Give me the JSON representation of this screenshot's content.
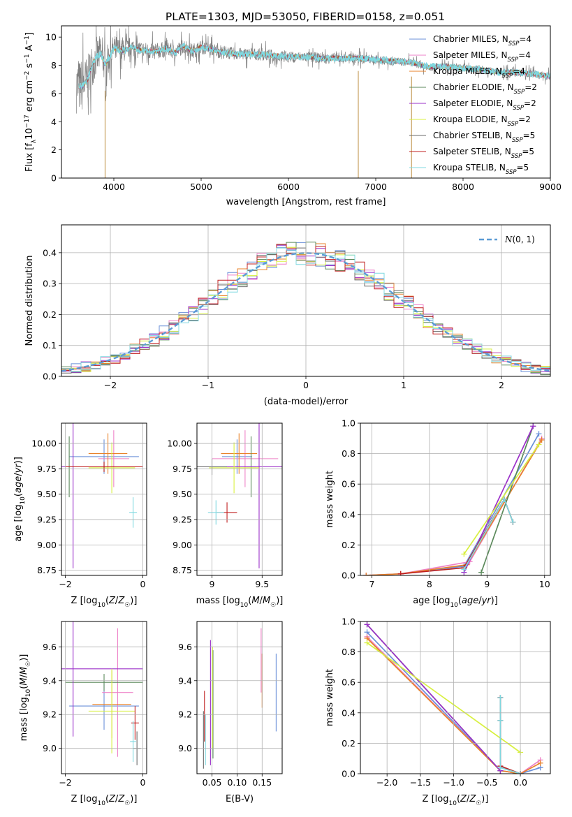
{
  "figure": {
    "title": "PLATE=1303, MJD=53050, FIBERID=0158, z=0.051"
  },
  "model_colors": {
    "Chabrier MILES": "#6a8fd8",
    "Salpeter MILES": "#ee82c8",
    "Kroupa MILES": "#e8822a",
    "Chabrier ELODIE": "#5b8a5b",
    "Salpeter ELODIE": "#9b30c9",
    "Kroupa ELODIE": "#d8f040",
    "Chabrier STELIB": "#6a6a6a",
    "Salpeter STELIB": "#c02020",
    "Kroupa STELIB": "#7fd8e0"
  },
  "chart_data": [
    {
      "id": "spectrum",
      "type": "line",
      "title": "PLATE=1303, MJD=53050, FIBERID=0158, z=0.051",
      "xlabel": "wavelength [Angstrom, rest frame]",
      "ylabel": "Flux [f_λ 10^-17 erg cm^-2 s^-1 A^-1]",
      "xlim": [
        3400,
        9000
      ],
      "ylim": [
        0,
        10.8
      ],
      "xticks": [
        4000,
        5000,
        6000,
        7000,
        8000,
        9000
      ],
      "yticks": [
        0,
        2,
        4,
        6,
        8,
        10
      ],
      "grid": false,
      "legend_position": "top-right",
      "legend": [
        {
          "model": "Chabrier MILES",
          "label": "Chabrier MILES, N",
          "sub": "SSP",
          "suffix": "=4"
        },
        {
          "model": "Salpeter MILES",
          "label": "Salpeter MILES, N",
          "sub": "SSP",
          "suffix": "=4"
        },
        {
          "model": "Kroupa MILES",
          "label": "Kroupa MILES, N",
          "sub": "SSP",
          "suffix": "=4"
        },
        {
          "model": "Chabrier ELODIE",
          "label": "Chabrier ELODIE, N",
          "sub": "SSP",
          "suffix": "=2"
        },
        {
          "model": "Salpeter ELODIE",
          "label": "Salpeter ELODIE, N",
          "sub": "SSP",
          "suffix": "=2"
        },
        {
          "model": "Kroupa ELODIE",
          "label": "Kroupa ELODIE, N",
          "sub": "SSP",
          "suffix": "=2"
        },
        {
          "model": "Chabrier STELIB",
          "label": "Chabrier STELIB, N",
          "sub": "SSP",
          "suffix": "=5"
        },
        {
          "model": "Salpeter STELIB",
          "label": "Salpeter STELIB, N",
          "sub": "SSP",
          "suffix": "=5"
        },
        {
          "model": "Kroupa STELIB",
          "label": "Kroupa STELIB, N",
          "sub": "SSP",
          "suffix": "=5"
        }
      ],
      "data_spectrum": {
        "color": "#808080",
        "x": [
          3600,
          3650,
          3700,
          3750,
          3800,
          3850,
          3900,
          3950,
          4000,
          4100,
          4200,
          4300,
          4400,
          4500,
          4600,
          4700,
          4800,
          4900,
          5000,
          5200,
          5400,
          5600,
          5800,
          6000,
          6200,
          6400,
          6600,
          6800,
          7000,
          7200,
          7400,
          7600,
          7800,
          8000,
          8200,
          8400,
          8600,
          8800,
          9000
        ],
        "y": [
          6.5,
          6.6,
          7.0,
          8.0,
          8.6,
          8.8,
          8.0,
          8.6,
          9.2,
          9.0,
          9.3,
          9.1,
          9.0,
          9.0,
          9.2,
          8.9,
          9.4,
          9.0,
          9.3,
          9.0,
          8.8,
          8.8,
          8.7,
          8.6,
          8.6,
          8.5,
          8.5,
          8.5,
          8.4,
          8.3,
          8.2,
          7.9,
          7.9,
          7.8,
          7.7,
          7.5,
          7.5,
          7.4,
          7.2
        ],
        "noise_amplitude": [
          3.5,
          3.5,
          3.0,
          2.8,
          2.6,
          2.4,
          2.2,
          2.0,
          1.8,
          1.5,
          1.3,
          1.2,
          1.1,
          1.1,
          1.0,
          1.0,
          1.0,
          1.0,
          0.9,
          0.9,
          0.8,
          0.8,
          0.8,
          0.7,
          0.7,
          0.7,
          0.7,
          0.6,
          0.6,
          0.6,
          0.5,
          0.5,
          0.5,
          0.5,
          0.5,
          0.5,
          0.5,
          0.5,
          0.5
        ]
      },
      "model_spectrum": {
        "x": [
          3600,
          3650,
          3700,
          3750,
          3800,
          3850,
          3900,
          3950,
          4000,
          4100,
          4200,
          4300,
          4400,
          4500,
          4600,
          4700,
          4800,
          4900,
          5000,
          5200,
          5400,
          5600,
          5800,
          6000,
          6200,
          6400,
          6600,
          6800,
          7000,
          7200,
          7400,
          7600,
          7800,
          8000,
          8200,
          8400,
          8600,
          8800,
          9000
        ],
        "y": [
          6.5,
          6.6,
          7.0,
          8.0,
          8.6,
          8.8,
          8.0,
          8.6,
          9.2,
          9.0,
          9.3,
          9.1,
          9.0,
          9.0,
          9.2,
          8.9,
          9.4,
          9.0,
          9.3,
          9.0,
          8.8,
          8.8,
          8.7,
          8.6,
          8.6,
          8.5,
          8.5,
          8.5,
          8.4,
          8.3,
          8.2,
          7.9,
          7.9,
          7.8,
          7.7,
          7.5,
          7.5,
          7.4,
          7.2
        ],
        "jitter": 0.35
      },
      "drop_lines": [
        {
          "x": 3900,
          "ymin": 0,
          "ymax": 6.2
        },
        {
          "x": 6800,
          "ymin": 0,
          "ymax": 7.6
        },
        {
          "x": 7410,
          "ymin": 0,
          "ymax": 7.2
        }
      ]
    },
    {
      "id": "residuals",
      "type": "histogram",
      "xlabel": "(data-model)/error",
      "ylabel": "Normed distribution",
      "xlim": [
        -2.5,
        2.5
      ],
      "ylim": [
        0,
        0.49
      ],
      "xticks": [
        -2,
        -1,
        0,
        1,
        2
      ],
      "yticks": [
        0.0,
        0.1,
        0.2,
        0.3,
        0.4
      ],
      "grid": true,
      "legend_position": "top-right",
      "legend": [
        {
          "label": "N(0,1)",
          "color": "#5b9bd5",
          "style": "dashed"
        }
      ],
      "bin_width": 0.1,
      "bin_start": -2.5,
      "series_count": 9
    },
    {
      "id": "age_vs_Z",
      "type": "errorbar",
      "xlabel": "Z [log10(Z/Z☉)]",
      "ylabel": "age [log10(age/yr)]",
      "xlim": [
        -2.1,
        0.1
      ],
      "ylim": [
        8.7,
        10.2
      ],
      "xticks": [
        -2,
        0
      ],
      "yticks": [
        8.75,
        9.0,
        9.25,
        9.5,
        9.75,
        10.0
      ],
      "grid": true,
      "points": [
        {
          "model": "Chabrier MILES",
          "x": -1.0,
          "xerr": 0.9,
          "y": 9.87,
          "yerr": 0.17
        },
        {
          "model": "Salpeter MILES",
          "x": -0.75,
          "xerr": 0.4,
          "y": 9.85,
          "yerr": 0.28
        },
        {
          "model": "Kroupa MILES",
          "x": -0.9,
          "xerr": 0.5,
          "y": 9.9,
          "yerr": 0.2
        },
        {
          "model": "Chabrier ELODIE",
          "x": -1.9,
          "xerr": 0.15,
          "y": 9.77,
          "yerr": 0.3
        },
        {
          "model": "Salpeter ELODIE",
          "x": -1.8,
          "xerr": 1.8,
          "y": 9.77,
          "yerr": 1.0
        },
        {
          "model": "Kroupa ELODIE",
          "x": -0.8,
          "xerr": 0.6,
          "y": 9.76,
          "yerr": 0.25
        },
        {
          "model": "Chabrier STELIB",
          "x": -1.0,
          "xerr": 1.0,
          "y": 9.77,
          "yerr": 0.05
        },
        {
          "model": "Salpeter STELIB",
          "x": -1.0,
          "xerr": 1.0,
          "y": 9.77,
          "yerr": 0.05
        },
        {
          "model": "Kroupa STELIB",
          "x": -0.25,
          "xerr": 0.1,
          "y": 9.32,
          "yerr": 0.15
        }
      ]
    },
    {
      "id": "age_vs_mass",
      "type": "errorbar",
      "xlabel": "mass [log10(M/M☉)]",
      "ylabel": "",
      "xlim": [
        8.85,
        9.7
      ],
      "ylim": [
        8.7,
        10.2
      ],
      "xticks": [
        9.0,
        9.5
      ],
      "yticks": [
        8.75,
        9.0,
        9.25,
        9.5,
        9.75,
        10.0
      ],
      "grid": true,
      "points": [
        {
          "model": "Chabrier MILES",
          "x": 9.25,
          "xerr": 0.15,
          "y": 9.87,
          "yerr": 0.17
        },
        {
          "model": "Salpeter MILES",
          "x": 9.33,
          "xerr": 0.33,
          "y": 9.85,
          "yerr": 0.28
        },
        {
          "model": "Kroupa MILES",
          "x": 9.27,
          "xerr": 0.18,
          "y": 9.9,
          "yerr": 0.2
        },
        {
          "model": "Chabrier ELODIE",
          "x": 9.39,
          "xerr": 0.05,
          "y": 9.77,
          "yerr": 0.3
        },
        {
          "model": "Salpeter ELODIE",
          "x": 9.47,
          "xerr": 0.4,
          "y": 9.77,
          "yerr": 1.0
        },
        {
          "model": "Kroupa ELODIE",
          "x": 9.22,
          "xerr": 0.25,
          "y": 9.76,
          "yerr": 0.25
        },
        {
          "model": "Chabrier STELIB",
          "x": 9.0,
          "xerr": 0.15,
          "y": 9.77,
          "yerr": 0.08
        },
        {
          "model": "Salpeter STELIB",
          "x": 9.15,
          "xerr": 0.1,
          "y": 9.32,
          "yerr": 0.1
        },
        {
          "model": "Kroupa STELIB",
          "x": 9.04,
          "xerr": 0.08,
          "y": 9.32,
          "yerr": 0.12
        }
      ]
    },
    {
      "id": "massweight_vs_age",
      "type": "line",
      "xlabel": "age [log10(age/yr)]",
      "ylabel": "mass weight",
      "xlim": [
        6.8,
        10.1
      ],
      "ylim": [
        0,
        1.0
      ],
      "xticks": [
        7,
        8,
        9,
        10
      ],
      "yticks": [
        0.0,
        0.2,
        0.4,
        0.6,
        0.8,
        1.0
      ],
      "grid": true,
      "series": [
        {
          "model": "Chabrier MILES",
          "x": [
            6.9,
            7.5,
            8.6,
            9.9
          ],
          "y": [
            0.0,
            0.01,
            0.06,
            0.93
          ]
        },
        {
          "model": "Salpeter MILES",
          "x": [
            6.9,
            7.5,
            8.7,
            9.95
          ],
          "y": [
            0.0,
            0.01,
            0.09,
            0.9
          ]
        },
        {
          "model": "Kroupa MILES",
          "x": [
            6.9,
            7.5,
            8.65,
            9.95
          ],
          "y": [
            0.0,
            0.01,
            0.07,
            0.89
          ]
        },
        {
          "model": "Chabrier ELODIE",
          "x": [
            8.9,
            9.8
          ],
          "y": [
            0.02,
            0.98
          ]
        },
        {
          "model": "Salpeter ELODIE",
          "x": [
            8.6,
            9.8
          ],
          "y": [
            0.02,
            0.98
          ]
        },
        {
          "model": "Kroupa ELODIE",
          "x": [
            8.6,
            9.9
          ],
          "y": [
            0.14,
            0.86
          ]
        },
        {
          "model": "Chabrier STELIB",
          "x": [
            8.6,
            9.3,
            9.45
          ],
          "y": [
            0.05,
            0.5,
            0.35
          ]
        },
        {
          "model": "Salpeter STELIB",
          "x": [
            7.5,
            8.6,
            9.3,
            9.45
          ],
          "y": [
            0.01,
            0.05,
            0.5,
            0.35
          ]
        },
        {
          "model": "Kroupa STELIB",
          "x": [
            8.6,
            9.3,
            9.45
          ],
          "y": [
            0.04,
            0.5,
            0.35
          ]
        }
      ]
    },
    {
      "id": "mass_vs_Z",
      "type": "errorbar",
      "xlabel": "Z [log10(Z/Z☉)]",
      "ylabel": "mass [log10(M/M☉)]",
      "xlim": [
        -2.1,
        0.1
      ],
      "ylim": [
        8.85,
        9.75
      ],
      "xticks": [
        -2,
        0
      ],
      "yticks": [
        9.0,
        9.2,
        9.4,
        9.6
      ],
      "grid": true,
      "points": [
        {
          "model": "Chabrier MILES",
          "x": -1.0,
          "xerr": 0.9,
          "y": 9.25,
          "yerr": 0.14
        },
        {
          "model": "Salpeter MILES",
          "x": -0.65,
          "xerr": 0.4,
          "y": 9.33,
          "yerr": 0.38
        },
        {
          "model": "Kroupa MILES",
          "x": -0.8,
          "xerr": 0.5,
          "y": 9.26,
          "yerr": 0.2
        },
        {
          "model": "Chabrier ELODIE",
          "x": -1.0,
          "xerr": 1.0,
          "y": 9.39,
          "yerr": 0.05
        },
        {
          "model": "Salpeter ELODIE",
          "x": -1.8,
          "xerr": 1.8,
          "y": 9.47,
          "yerr": 0.4
        },
        {
          "model": "Kroupa ELODIE",
          "x": -0.8,
          "xerr": 0.6,
          "y": 9.22,
          "yerr": 0.25
        },
        {
          "model": "Chabrier STELIB",
          "x": -0.15,
          "xerr": 0.1,
          "y": 9.0,
          "yerr": 0.1
        },
        {
          "model": "Salpeter STELIB",
          "x": -0.2,
          "xerr": 0.1,
          "y": 9.15,
          "yerr": 0.1
        },
        {
          "model": "Kroupa STELIB",
          "x": -0.25,
          "xerr": 0.08,
          "y": 9.04,
          "yerr": 0.12
        }
      ]
    },
    {
      "id": "mass_vs_EBV",
      "type": "errorbar",
      "xlabel": "E(B-V)",
      "ylabel": "",
      "xlim": [
        0.02,
        0.19
      ],
      "ylim": [
        8.85,
        9.75
      ],
      "xticks": [
        0.05,
        0.1,
        0.15
      ],
      "xticklabels": [
        "0.05",
        "0.10",
        "0.15"
      ],
      "yticks": [
        9.0,
        9.2,
        9.4,
        9.6
      ],
      "grid": true,
      "points": [
        {
          "model": "Chabrier MILES",
          "x": 0.178,
          "y": 9.33,
          "yerr": 0.23
        },
        {
          "model": "Salpeter MILES",
          "x": 0.148,
          "y": 9.52,
          "yerr": 0.19
        },
        {
          "model": "Kroupa MILES",
          "x": 0.15,
          "y": 9.4,
          "yerr": 0.16
        },
        {
          "model": "Chabrier ELODIE",
          "x": 0.052,
          "y": 9.26,
          "yerr": 0.32
        },
        {
          "model": "Salpeter ELODIE",
          "x": 0.047,
          "y": 9.27,
          "yerr": 0.37
        },
        {
          "model": "Kroupa ELODIE",
          "x": 0.051,
          "y": 9.3,
          "yerr": 0.3
        },
        {
          "model": "Chabrier STELIB",
          "x": 0.033,
          "y": 9.05,
          "yerr": 0.17
        },
        {
          "model": "Salpeter STELIB",
          "x": 0.035,
          "y": 9.19,
          "yerr": 0.15
        },
        {
          "model": "Kroupa STELIB",
          "x": 0.037,
          "y": 9.05,
          "yerr": 0.15
        }
      ]
    },
    {
      "id": "massweight_vs_Z",
      "type": "line",
      "xlabel": "Z [log10(Z/Z☉)]",
      "ylabel": "mass weight",
      "xlim": [
        -2.4,
        0.45
      ],
      "ylim": [
        0,
        1.0
      ],
      "xticks": [
        -2.0,
        -1.5,
        -1.0,
        -0.5,
        0.0
      ],
      "xticklabels": [
        "−2.0",
        "−1.5",
        "−1.0",
        "−0.5",
        "0.0"
      ],
      "yticks": [
        0.0,
        0.2,
        0.4,
        0.6,
        0.8,
        1.0
      ],
      "grid": true,
      "series": [
        {
          "model": "Chabrier MILES",
          "x": [
            -2.3,
            -0.3,
            0.0,
            0.3
          ],
          "y": [
            0.93,
            0.02,
            0.0,
            0.04
          ]
        },
        {
          "model": "Salpeter MILES",
          "x": [
            -2.3,
            -0.3,
            0.0,
            0.3
          ],
          "y": [
            0.9,
            0.02,
            0.0,
            0.09
          ]
        },
        {
          "model": "Kroupa MILES",
          "x": [
            -2.3,
            -0.3,
            0.0,
            0.3
          ],
          "y": [
            0.89,
            0.02,
            0.0,
            0.07
          ]
        },
        {
          "model": "Chabrier ELODIE",
          "x": [
            -2.3,
            -0.3
          ],
          "y": [
            0.98,
            0.02
          ]
        },
        {
          "model": "Salpeter ELODIE",
          "x": [
            -2.3,
            -0.3
          ],
          "y": [
            0.98,
            0.02
          ]
        },
        {
          "model": "Kroupa ELODIE",
          "x": [
            -2.3,
            0.0
          ],
          "y": [
            0.86,
            0.14
          ]
        },
        {
          "model": "Chabrier STELIB",
          "x": [
            -0.3,
            -0.3,
            -0.3,
            0.0
          ],
          "y": [
            0.5,
            0.35,
            0.05,
            0.0
          ]
        },
        {
          "model": "Salpeter STELIB",
          "x": [
            -0.3,
            -0.3,
            -0.3,
            0.0
          ],
          "y": [
            0.5,
            0.35,
            0.05,
            0.0
          ]
        },
        {
          "model": "Kroupa STELIB",
          "x": [
            -0.3,
            -0.3,
            -0.3,
            0.0
          ],
          "y": [
            0.5,
            0.35,
            0.04,
            0.0
          ]
        }
      ]
    }
  ]
}
